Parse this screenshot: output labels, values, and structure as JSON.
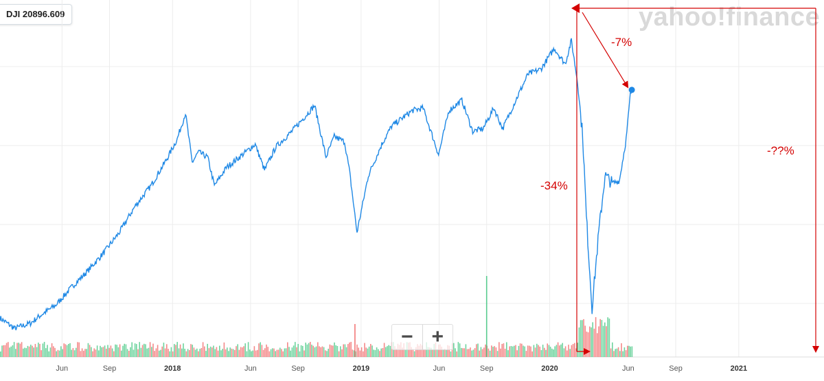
{
  "ticker": {
    "symbol": "DJI",
    "value": "20896.609"
  },
  "watermark": "yahoo!finance",
  "zoom": {
    "minus": "−",
    "plus": "+"
  },
  "annotations": {
    "drop_short": "-7%",
    "drop_mid": "-34%",
    "drop_unknown": "-??%"
  },
  "colors": {
    "line": "#1e88e5",
    "annotation": "#d40000",
    "vol_up": "#3cc47c",
    "vol_down": "#f06060",
    "grid": "#ececec"
  },
  "chart_data": {
    "type": "line",
    "title": "",
    "xlabel": "",
    "ylabel": "",
    "x_ticks": [
      {
        "label": "Jun",
        "bold": false
      },
      {
        "label": "Sep",
        "bold": false
      },
      {
        "label": "2018",
        "bold": true
      },
      {
        "label": "Jun",
        "bold": false
      },
      {
        "label": "Sep",
        "bold": false
      },
      {
        "label": "2019",
        "bold": true
      },
      {
        "label": "Jun",
        "bold": false
      },
      {
        "label": "Sep",
        "bold": false
      },
      {
        "label": "2020",
        "bold": true
      },
      {
        "label": "Jun",
        "bold": false
      },
      {
        "label": "Sep",
        "bold": false
      },
      {
        "label": "2021",
        "bold": true
      }
    ],
    "x_tick_dates": [
      "2017-06-01",
      "2017-09-01",
      "2018-01-01",
      "2018-06-01",
      "2018-09-01",
      "2019-01-01",
      "2019-06-01",
      "2019-09-01",
      "2020-01-01",
      "2020-06-01",
      "2020-09-01",
      "2021-01-01"
    ],
    "x_range": [
      "2017-02-01",
      "2021-06-15"
    ],
    "y_range": [
      17000,
      30500
    ],
    "grid": true,
    "series": [
      {
        "x": [
          "2017-02-01",
          "2017-03-01",
          "2017-04-01",
          "2017-04-20",
          "2017-05-20",
          "2017-06-20",
          "2017-07-20",
          "2017-08-20",
          "2017-09-20",
          "2017-10-20",
          "2017-11-20",
          "2017-12-20",
          "2018-01-10",
          "2018-01-26",
          "2018-02-08",
          "2018-02-20",
          "2018-03-10",
          "2018-03-23",
          "2018-04-15",
          "2018-05-10",
          "2018-06-10",
          "2018-06-28",
          "2018-07-20",
          "2018-08-20",
          "2018-09-20",
          "2018-10-03",
          "2018-10-25",
          "2018-11-10",
          "2018-11-30",
          "2018-12-10",
          "2018-12-24",
          "2019-01-15",
          "2019-02-10",
          "2019-03-01",
          "2019-04-10",
          "2019-05-01",
          "2019-05-31",
          "2019-06-20",
          "2019-07-15",
          "2019-08-05",
          "2019-08-25",
          "2019-09-15",
          "2019-10-02",
          "2019-10-25",
          "2019-11-20",
          "2019-12-15",
          "2020-01-10",
          "2020-01-31",
          "2020-02-12",
          "2020-02-24",
          "2020-03-05",
          "2020-03-12",
          "2020-03-23",
          "2020-04-05",
          "2020-04-17",
          "2020-05-01",
          "2020-05-15",
          "2020-05-28",
          "2020-06-05",
          "2020-06-08"
        ],
        "y": [
          18500,
          18100,
          18300,
          18600,
          19000,
          19700,
          20300,
          21000,
          21800,
          22800,
          23600,
          24600,
          25400,
          26400,
          24500,
          24900,
          24700,
          23600,
          24300,
          24700,
          25200,
          24200,
          25100,
          25700,
          26400,
          26700,
          24700,
          25500,
          25300,
          24100,
          21800,
          24000,
          25200,
          25900,
          26500,
          26600,
          24800,
          26500,
          26900,
          25700,
          25800,
          26600,
          25800,
          26800,
          27900,
          28100,
          28900,
          28300,
          29200,
          27600,
          25500,
          22400,
          18900,
          21800,
          24000,
          23700,
          23800,
          25400,
          27100,
          27300
        ]
      }
    ],
    "volume": {
      "note": "relative daily volume bars (0-1 scale), green up / red down",
      "spike_dates": [
        "2018-12-20",
        "2019-09-01",
        "2020-03-16"
      ]
    }
  }
}
